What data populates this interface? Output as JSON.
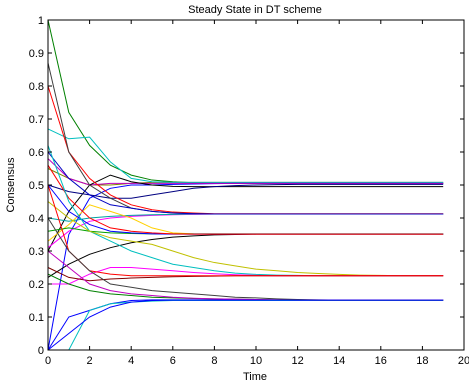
{
  "chart_data": {
    "type": "line",
    "title": "Steady State in DT scheme",
    "xlabel": "Time",
    "ylabel": "Consensus",
    "xlim": [
      0,
      20
    ],
    "ylim": [
      0,
      1
    ],
    "xticks": [
      "0",
      "2",
      "4",
      "6",
      "8",
      "10",
      "12",
      "14",
      "16",
      "18",
      "20"
    ],
    "yticks": [
      "0",
      "0.1",
      "0.2",
      "0.3",
      "0.4",
      "0.5",
      "0.6",
      "0.7",
      "0.8",
      "0.9",
      "1"
    ],
    "grid": false,
    "legend": "none",
    "x": [
      0,
      1,
      2,
      3,
      4,
      5,
      6,
      7,
      8,
      9,
      10,
      11,
      12,
      13,
      14,
      15,
      16,
      17,
      18,
      19
    ],
    "series": [
      {
        "color": "#008000",
        "values": [
          1.0,
          0.72,
          0.62,
          0.56,
          0.53,
          0.515,
          0.51,
          0.507,
          0.505,
          0.505,
          0.505,
          0.505,
          0.505,
          0.505,
          0.505,
          0.505,
          0.505,
          0.505,
          0.505,
          0.505
        ]
      },
      {
        "color": "#808000",
        "values": [
          0.55,
          0.52,
          0.5,
          0.5,
          0.505,
          0.508,
          0.508,
          0.508,
          0.508,
          0.508,
          0.508,
          0.508,
          0.508,
          0.508,
          0.508,
          0.508,
          0.508,
          0.508,
          0.508,
          0.508
        ]
      },
      {
        "color": "#00bfbf",
        "values": [
          0.67,
          0.64,
          0.645,
          0.57,
          0.52,
          0.51,
          0.508,
          0.508,
          0.508,
          0.508,
          0.508,
          0.508,
          0.508,
          0.508,
          0.508,
          0.508,
          0.508,
          0.508,
          0.508,
          0.508
        ]
      },
      {
        "color": "#0000ff",
        "values": [
          0.0,
          0.35,
          0.46,
          0.49,
          0.5,
          0.5,
          0.502,
          0.503,
          0.504,
          0.505,
          0.505,
          0.505,
          0.505,
          0.505,
          0.505,
          0.505,
          0.505,
          0.505,
          0.505,
          0.505
        ]
      },
      {
        "color": "#bf00bf",
        "values": [
          0.58,
          0.52,
          0.5,
          0.505,
          0.505,
          0.505,
          0.505,
          0.505,
          0.505,
          0.505,
          0.505,
          0.505,
          0.505,
          0.505,
          0.505,
          0.505,
          0.505,
          0.505,
          0.505,
          0.505
        ]
      },
      {
        "color": "#000000",
        "values": [
          0.3,
          0.42,
          0.5,
          0.53,
          0.51,
          0.5,
          0.496,
          0.495,
          0.495,
          0.495,
          0.495,
          0.495,
          0.495,
          0.495,
          0.495,
          0.495,
          0.495,
          0.495,
          0.495,
          0.495
        ]
      },
      {
        "color": "#000080",
        "values": [
          0.5,
          0.48,
          0.47,
          0.46,
          0.46,
          0.47,
          0.48,
          0.49,
          0.495,
          0.498,
          0.5,
          0.501,
          0.502,
          0.502,
          0.502,
          0.502,
          0.502,
          0.502,
          0.502,
          0.502
        ]
      },
      {
        "color": "#ff0000",
        "values": [
          0.8,
          0.6,
          0.52,
          0.47,
          0.44,
          0.425,
          0.418,
          0.415,
          0.413,
          0.413,
          0.413,
          0.413,
          0.413,
          0.413,
          0.413,
          0.413,
          0.413,
          0.413,
          0.413,
          0.413
        ]
      },
      {
        "color": "#404040",
        "values": [
          0.87,
          0.6,
          0.5,
          0.46,
          0.43,
          0.42,
          0.415,
          0.413,
          0.412,
          0.412,
          0.412,
          0.412,
          0.412,
          0.412,
          0.412,
          0.412,
          0.412,
          0.412,
          0.412,
          0.412
        ]
      },
      {
        "color": "#ff00ff",
        "values": [
          0.31,
          0.36,
          0.39,
          0.4,
          0.405,
          0.408,
          0.41,
          0.411,
          0.412,
          0.412,
          0.412,
          0.412,
          0.412,
          0.412,
          0.412,
          0.412,
          0.412,
          0.412,
          0.412,
          0.412
        ]
      },
      {
        "color": "#00a0a0",
        "values": [
          0.4,
          0.39,
          0.4,
          0.405,
          0.408,
          0.41,
          0.411,
          0.412,
          0.412,
          0.412,
          0.412,
          0.412,
          0.412,
          0.412,
          0.412,
          0.412,
          0.412,
          0.412,
          0.412,
          0.412
        ]
      },
      {
        "color": "#0000c0",
        "values": [
          0.6,
          0.52,
          0.47,
          0.44,
          0.43,
          0.42,
          0.415,
          0.413,
          0.412,
          0.412,
          0.412,
          0.412,
          0.412,
          0.412,
          0.412,
          0.412,
          0.412,
          0.412,
          0.412,
          0.412
        ]
      },
      {
        "color": "#ffd000",
        "values": [
          0.33,
          0.38,
          0.44,
          0.42,
          0.4,
          0.37,
          0.355,
          0.352,
          0.351,
          0.351,
          0.351,
          0.351,
          0.351,
          0.351,
          0.351,
          0.351,
          0.351,
          0.351,
          0.351,
          0.351
        ]
      },
      {
        "color": "#00a000",
        "values": [
          0.36,
          0.37,
          0.36,
          0.355,
          0.353,
          0.352,
          0.352,
          0.352,
          0.352,
          0.352,
          0.352,
          0.352,
          0.352,
          0.352,
          0.352,
          0.352,
          0.352,
          0.352,
          0.352,
          0.352
        ]
      },
      {
        "color": "#000000",
        "values": [
          0.22,
          0.26,
          0.29,
          0.31,
          0.325,
          0.335,
          0.342,
          0.346,
          0.349,
          0.35,
          0.351,
          0.351,
          0.351,
          0.351,
          0.351,
          0.351,
          0.351,
          0.351,
          0.351,
          0.351
        ]
      },
      {
        "color": "#0000ff",
        "values": [
          0.5,
          0.42,
          0.38,
          0.36,
          0.355,
          0.352,
          0.351,
          0.351,
          0.351,
          0.351,
          0.351,
          0.351,
          0.351,
          0.351,
          0.351,
          0.351,
          0.351,
          0.351,
          0.351,
          0.351
        ]
      },
      {
        "color": "#ff0000",
        "values": [
          0.56,
          0.46,
          0.4,
          0.37,
          0.36,
          0.355,
          0.352,
          0.351,
          0.351,
          0.351,
          0.351,
          0.351,
          0.351,
          0.351,
          0.351,
          0.351,
          0.351,
          0.351,
          0.351,
          0.351
        ]
      },
      {
        "color": "#00bfbf",
        "values": [
          0.62,
          0.45,
          0.36,
          0.33,
          0.3,
          0.28,
          0.26,
          0.25,
          0.24,
          0.233,
          0.229,
          0.227,
          0.226,
          0.225,
          0.225,
          0.225,
          0.225,
          0.225,
          0.225,
          0.225
        ]
      },
      {
        "color": "#c0c000",
        "values": [
          0.45,
          0.4,
          0.36,
          0.34,
          0.33,
          0.32,
          0.3,
          0.28,
          0.265,
          0.255,
          0.245,
          0.24,
          0.235,
          0.232,
          0.229,
          0.227,
          0.226,
          0.225,
          0.225,
          0.225
        ]
      },
      {
        "color": "#ff00ff",
        "values": [
          0.2,
          0.2,
          0.23,
          0.25,
          0.25,
          0.245,
          0.24,
          0.235,
          0.231,
          0.228,
          0.226,
          0.225,
          0.225,
          0.225,
          0.225,
          0.225,
          0.225,
          0.225,
          0.225,
          0.225
        ]
      },
      {
        "color": "#800000",
        "values": [
          0.25,
          0.22,
          0.21,
          0.215,
          0.218,
          0.22,
          0.222,
          0.223,
          0.224,
          0.225,
          0.225,
          0.225,
          0.225,
          0.225,
          0.225,
          0.225,
          0.225,
          0.225,
          0.225,
          0.225
        ]
      },
      {
        "color": "#ff0000",
        "values": [
          0.5,
          0.3,
          0.24,
          0.23,
          0.225,
          0.225,
          0.225,
          0.225,
          0.225,
          0.225,
          0.225,
          0.225,
          0.225,
          0.225,
          0.225,
          0.225,
          0.225,
          0.225,
          0.225,
          0.225
        ]
      },
      {
        "color": "#404040",
        "values": [
          0.4,
          0.3,
          0.24,
          0.2,
          0.19,
          0.18,
          0.175,
          0.17,
          0.165,
          0.16,
          0.158,
          0.155,
          0.153,
          0.152,
          0.151,
          0.151,
          0.151,
          0.151,
          0.151,
          0.151
        ]
      },
      {
        "color": "#0000ff",
        "values": [
          0.0,
          0.1,
          0.12,
          0.14,
          0.15,
          0.152,
          0.152,
          0.152,
          0.152,
          0.151,
          0.151,
          0.151,
          0.151,
          0.151,
          0.151,
          0.151,
          0.151,
          0.151,
          0.151,
          0.151
        ]
      },
      {
        "color": "#00bfbf",
        "values": [
          0.0,
          0.0,
          0.12,
          0.14,
          0.145,
          0.148,
          0.15,
          0.15,
          0.15,
          0.15,
          0.15,
          0.15,
          0.15,
          0.15,
          0.15,
          0.15,
          0.15,
          0.15,
          0.15,
          0.15
        ]
      },
      {
        "color": "#008000",
        "values": [
          0.23,
          0.2,
          0.18,
          0.17,
          0.165,
          0.16,
          0.158,
          0.156,
          0.155,
          0.154,
          0.153,
          0.152,
          0.152,
          0.151,
          0.151,
          0.151,
          0.151,
          0.151,
          0.151,
          0.151
        ]
      },
      {
        "color": "#bf00bf",
        "values": [
          0.3,
          0.25,
          0.2,
          0.18,
          0.17,
          0.165,
          0.16,
          0.157,
          0.155,
          0.154,
          0.153,
          0.152,
          0.151,
          0.151,
          0.151,
          0.151,
          0.151,
          0.151,
          0.151,
          0.151
        ]
      },
      {
        "color": "#0000ff",
        "values": [
          0.0,
          0.05,
          0.1,
          0.13,
          0.145,
          0.15,
          0.151,
          0.151,
          0.151,
          0.151,
          0.151,
          0.151,
          0.151,
          0.151,
          0.151,
          0.151,
          0.151,
          0.151,
          0.151,
          0.151
        ]
      }
    ]
  }
}
